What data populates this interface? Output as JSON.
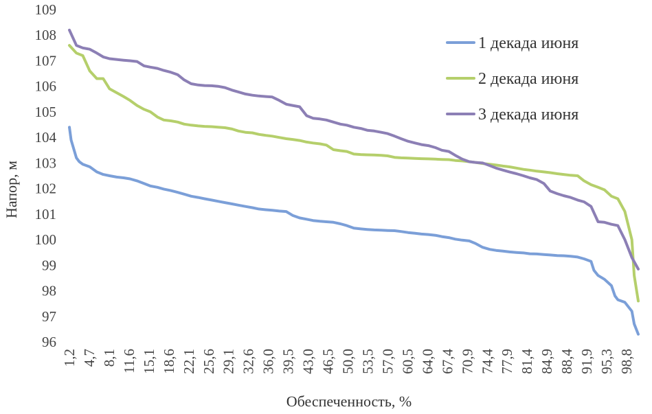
{
  "chart_data": {
    "type": "line",
    "xlabel": "Обеспеченность, %",
    "ylabel": "Напор, м",
    "ylim": [
      96,
      109
    ],
    "yticks": [
      "96",
      "97",
      "98",
      "99",
      "100",
      "101",
      "102",
      "103",
      "104",
      "105",
      "106",
      "107",
      "108",
      "109"
    ],
    "x_tick_labels": [
      "1,2",
      "4,7",
      "8,1",
      "11,6",
      "15,1",
      "18,6",
      "22,1",
      "25,6",
      "29,1",
      "32,6",
      "36,0",
      "39,5",
      "43,0",
      "46,5",
      "50,0",
      "53,5",
      "57,0",
      "60,5",
      "64,0",
      "67,4",
      "70,9",
      "74,4",
      "77,9",
      "81,4",
      "84,9",
      "88,4",
      "91,9",
      "95,3",
      "98,8"
    ],
    "grid": false,
    "legend_position": "top-right",
    "series": [
      {
        "name": "1 декада июня",
        "color": "#7b9fd8",
        "x": [
          1.2,
          1.5,
          2.4,
          2.9,
          3.5,
          4.7,
          5.9,
          7.0,
          8.1,
          9.3,
          10.5,
          11.6,
          12.8,
          14.0,
          15.1,
          16.3,
          17.4,
          18.6,
          19.8,
          20.9,
          22.1,
          23.3,
          24.4,
          25.6,
          26.7,
          27.9,
          29.1,
          30.2,
          31.4,
          32.6,
          33.7,
          34.9,
          36.0,
          37.2,
          38.4,
          39.5,
          40.7,
          41.9,
          43.0,
          44.2,
          45.3,
          46.5,
          47.7,
          48.8,
          50.0,
          51.2,
          52.3,
          53.5,
          54.7,
          55.8,
          57.0,
          58.1,
          59.3,
          60.5,
          61.6,
          62.8,
          64.0,
          65.1,
          66.3,
          67.4,
          68.6,
          69.8,
          70.9,
          72.1,
          73.3,
          74.4,
          75.6,
          76.7,
          77.9,
          79.1,
          80.2,
          81.4,
          82.6,
          83.7,
          84.9,
          86.0,
          87.2,
          88.4,
          89.5,
          90.7,
          91.2,
          91.9,
          93.0,
          94.2,
          94.8,
          95.3,
          96.5,
          97.7,
          98.1,
          98.8
        ],
        "values": [
          104.4,
          103.9,
          103.2,
          103.05,
          102.95,
          102.85,
          102.65,
          102.55,
          102.5,
          102.45,
          102.42,
          102.38,
          102.3,
          102.2,
          102.1,
          102.05,
          101.98,
          101.92,
          101.85,
          101.78,
          101.7,
          101.65,
          101.6,
          101.55,
          101.5,
          101.45,
          101.4,
          101.35,
          101.3,
          101.25,
          101.2,
          101.17,
          101.15,
          101.12,
          101.1,
          100.95,
          100.85,
          100.8,
          100.75,
          100.72,
          100.7,
          100.68,
          100.62,
          100.55,
          100.45,
          100.42,
          100.4,
          100.38,
          100.37,
          100.36,
          100.35,
          100.32,
          100.28,
          100.25,
          100.22,
          100.2,
          100.17,
          100.12,
          100.08,
          100.02,
          99.98,
          99.95,
          99.85,
          99.7,
          99.62,
          99.58,
          99.55,
          99.52,
          99.5,
          99.48,
          99.45,
          99.44,
          99.42,
          99.4,
          99.38,
          99.37,
          99.35,
          99.32,
          99.25,
          99.15,
          98.8,
          98.6,
          98.45,
          98.2,
          97.8,
          97.65,
          97.55,
          97.2,
          96.7,
          96.3
        ]
      },
      {
        "name": "2 декада июня",
        "color": "#b5cf6b",
        "x": [
          1.2,
          2.4,
          3.5,
          4.7,
          5.9,
          7.0,
          8.1,
          9.3,
          10.5,
          11.6,
          12.8,
          14.0,
          15.1,
          16.3,
          17.4,
          18.6,
          19.8,
          20.9,
          22.1,
          23.3,
          24.4,
          25.6,
          26.7,
          27.9,
          29.1,
          30.2,
          31.4,
          32.6,
          33.7,
          34.9,
          36.0,
          37.2,
          38.4,
          39.5,
          40.7,
          41.9,
          43.0,
          44.2,
          45.3,
          46.5,
          47.7,
          48.8,
          50.0,
          51.2,
          52.3,
          53.5,
          54.7,
          55.8,
          57.0,
          58.1,
          59.3,
          60.5,
          61.6,
          62.8,
          64.0,
          65.1,
          66.3,
          67.4,
          68.6,
          69.8,
          70.9,
          72.1,
          73.3,
          74.4,
          75.6,
          76.7,
          77.9,
          79.1,
          80.2,
          81.4,
          82.6,
          83.7,
          84.9,
          86.0,
          87.2,
          88.4,
          89.5,
          90.7,
          91.9,
          93.0,
          94.2,
          95.3,
          96.5,
          97.7,
          98.1,
          98.8
        ],
        "values": [
          107.6,
          107.3,
          107.2,
          106.6,
          106.3,
          106.3,
          105.9,
          105.75,
          105.6,
          105.45,
          105.25,
          105.1,
          105.0,
          104.8,
          104.68,
          104.65,
          104.6,
          104.52,
          104.48,
          104.45,
          104.43,
          104.42,
          104.4,
          104.38,
          104.33,
          104.25,
          104.2,
          104.18,
          104.12,
          104.08,
          104.05,
          104.0,
          103.95,
          103.92,
          103.88,
          103.82,
          103.78,
          103.75,
          103.7,
          103.52,
          103.48,
          103.45,
          103.35,
          103.33,
          103.32,
          103.31,
          103.3,
          103.28,
          103.22,
          103.2,
          103.19,
          103.18,
          103.17,
          103.16,
          103.15,
          103.14,
          103.13,
          103.1,
          103.08,
          103.05,
          103.02,
          102.98,
          102.95,
          102.92,
          102.88,
          102.85,
          102.8,
          102.75,
          102.72,
          102.68,
          102.65,
          102.62,
          102.58,
          102.55,
          102.52,
          102.5,
          102.3,
          102.15,
          102.05,
          101.95,
          101.7,
          101.6,
          101.1,
          100.0,
          98.6,
          97.6
        ]
      },
      {
        "name": "3 декада июня",
        "color": "#8c7fb5",
        "x": [
          1.2,
          2.4,
          3.5,
          4.7,
          5.9,
          7.0,
          8.1,
          9.3,
          10.5,
          11.6,
          12.8,
          14.0,
          15.1,
          16.3,
          17.4,
          18.6,
          19.8,
          20.9,
          22.1,
          23.3,
          24.4,
          25.6,
          26.7,
          27.9,
          29.1,
          30.2,
          31.4,
          32.6,
          33.7,
          34.9,
          36.0,
          37.2,
          38.4,
          39.5,
          40.7,
          41.9,
          43.0,
          44.2,
          45.3,
          46.5,
          47.7,
          48.8,
          50.0,
          51.2,
          52.3,
          53.5,
          54.7,
          55.8,
          57.0,
          58.1,
          59.3,
          60.5,
          61.6,
          62.8,
          64.0,
          65.1,
          66.3,
          67.4,
          68.6,
          69.8,
          70.9,
          72.1,
          73.3,
          74.4,
          75.6,
          76.7,
          77.9,
          79.1,
          80.2,
          81.4,
          82.6,
          83.7,
          84.9,
          86.0,
          87.2,
          88.4,
          89.5,
          90.7,
          91.9,
          93.0,
          94.2,
          95.3,
          96.5,
          97.7,
          98.8
        ],
        "values": [
          108.2,
          107.6,
          107.5,
          107.45,
          107.3,
          107.15,
          107.08,
          107.05,
          107.02,
          107.0,
          106.97,
          106.8,
          106.75,
          106.7,
          106.62,
          106.55,
          106.45,
          106.25,
          106.1,
          106.05,
          106.03,
          106.02,
          106.0,
          105.95,
          105.85,
          105.78,
          105.7,
          105.65,
          105.62,
          105.6,
          105.58,
          105.45,
          105.3,
          105.25,
          105.2,
          104.85,
          104.75,
          104.72,
          104.68,
          104.6,
          104.52,
          104.48,
          104.4,
          104.35,
          104.28,
          104.25,
          104.2,
          104.15,
          104.05,
          103.95,
          103.85,
          103.78,
          103.72,
          103.68,
          103.6,
          103.5,
          103.45,
          103.3,
          103.15,
          103.05,
          103.02,
          103.0,
          102.9,
          102.8,
          102.72,
          102.65,
          102.58,
          102.5,
          102.42,
          102.35,
          102.2,
          101.9,
          101.8,
          101.72,
          101.65,
          101.55,
          101.48,
          101.3,
          100.7,
          100.68,
          100.6,
          100.55,
          100.0,
          99.3,
          98.85
        ]
      }
    ]
  }
}
